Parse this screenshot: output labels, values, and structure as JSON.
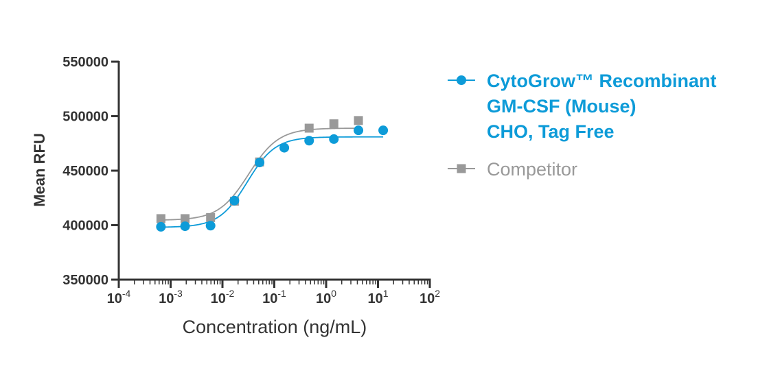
{
  "chart_data": {
    "type": "scatter",
    "xlabel": "Concentration (ng/mL)",
    "ylabel": "Mean RFU",
    "x_scale": "log10",
    "xlim": [
      0.0001,
      100
    ],
    "ylim": [
      350000,
      550000
    ],
    "x_ticks": [
      {
        "value": 0.0001,
        "base": "10",
        "exp": "-4"
      },
      {
        "value": 0.001,
        "base": "10",
        "exp": "-3"
      },
      {
        "value": 0.01,
        "base": "10",
        "exp": "-2"
      },
      {
        "value": 0.1,
        "base": "10",
        "exp": "-1"
      },
      {
        "value": 1,
        "base": "10",
        "exp": "0"
      },
      {
        "value": 10,
        "base": "10",
        "exp": "1"
      },
      {
        "value": 100,
        "base": "10",
        "exp": "2"
      }
    ],
    "y_ticks": [
      {
        "value": 350000,
        "label": "350000"
      },
      {
        "value": 400000,
        "label": "400000"
      },
      {
        "value": 450000,
        "label": "450000"
      },
      {
        "value": 500000,
        "label": "500000"
      },
      {
        "value": 550000,
        "label": "550000"
      }
    ],
    "grid": false,
    "legend_position": "right",
    "series": [
      {
        "name": "CytoGrow™ Recombinant GM-CSF (Mouse) CHO, Tag Free",
        "legend_lines": [
          "CytoGrow™ Recombinant",
          "GM-CSF (Mouse)",
          "CHO, Tag Free"
        ],
        "color": "#0d9bd8",
        "marker": "circle",
        "x": [
          0.00065,
          0.0019,
          0.0059,
          0.017,
          0.052,
          0.156,
          0.47,
          1.41,
          4.2,
          12.6
        ],
        "y": [
          398500,
          399000,
          399500,
          422500,
          457500,
          471000,
          477500,
          479000,
          487000,
          487000
        ],
        "fit": {
          "bottom": 398000,
          "top": 481000,
          "ec50": 0.03,
          "hill": 1.6
        }
      },
      {
        "name": "Competitor",
        "legend_lines": [
          "Competitor"
        ],
        "color": "#999999",
        "marker": "square",
        "x": [
          0.00065,
          0.0019,
          0.0059,
          0.017,
          0.052,
          0.47,
          1.41,
          4.2
        ],
        "y": [
          406000,
          406000,
          407000,
          422000,
          458000,
          489000,
          493000,
          496000
        ],
        "fit": {
          "bottom": 404500,
          "top": 489000,
          "ec50": 0.032,
          "hill": 1.5
        }
      }
    ]
  }
}
